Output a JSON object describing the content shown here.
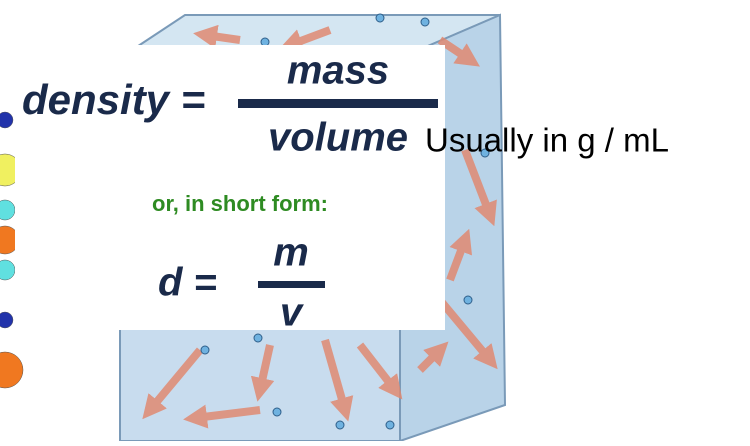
{
  "formula": {
    "lhs": "density =",
    "numerator": "mass",
    "denominator": "volume",
    "units_note": "Usually in g / mL"
  },
  "short_form": {
    "caption": "or, in short form:",
    "lhs": "d =",
    "numerator": "m",
    "denominator": "v"
  }
}
